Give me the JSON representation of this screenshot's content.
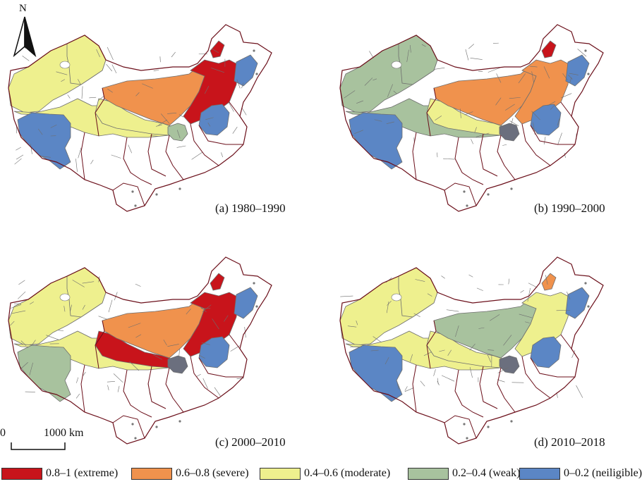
{
  "north_arrow": {
    "label": "N"
  },
  "scale_bar": {
    "start_label": "0",
    "end_label": "1000 km"
  },
  "panels": [
    {
      "caption": "(a) 1980–1990",
      "fills": {
        "dz": "#eef08e",
        "nw": "#eef08e",
        "ta": "#eef08e",
        "ti": "#5b86c5",
        "gs": "#eef08e",
        "im": "#f0924d",
        "ime": "#c8141b",
        "ne": "#c8141b",
        "nt": "#5b86c5",
        "np": "#a8c29e",
        "bj": "#5b86c5"
      }
    },
    {
      "caption": "(b) 1990–2000",
      "fills": {
        "dz": "#a8c29e",
        "nw": "#a8c29e",
        "ta": "#a8c29e",
        "ti": "#5b86c5",
        "gs": "#eef08e",
        "im": "#f0924d",
        "ime": "#f0924d",
        "ne": "#c8141b",
        "nt": "#5b86c5",
        "np": "#6b6f7e",
        "bj": "#5b86c5"
      }
    },
    {
      "caption": "(c) 2000–2010",
      "fills": {
        "dz": "#eef08e",
        "nw": "#eef08e",
        "ta": "#eef08e",
        "ti": "#a8c29e",
        "gs": "#c8141b",
        "im": "#f0924d",
        "ime": "#c8141b",
        "ne": "#c8141b",
        "nt": "#5b86c5",
        "np": "#6b6f7e",
        "bj": "#5b86c5"
      }
    },
    {
      "caption": "(d) 2010–2018",
      "fills": {
        "dz": "#eef08e",
        "nw": "#eef08e",
        "ta": "#eef08e",
        "ti": "#5b86c5",
        "gs": "#eef08e",
        "im": "#a8c29e",
        "ime": "#eef08e",
        "ne": "#f0924d",
        "nt": "#5b86c5",
        "np": "#6b6f7e",
        "bj": "#5b86c5"
      }
    }
  ],
  "legend": [
    {
      "label": "0.8–1 (extreme)",
      "color": "#c8141b"
    },
    {
      "label": "0.6–0.8  (severe)",
      "color": "#f0924d"
    },
    {
      "label": "0.4–0.6 (moderate)",
      "color": "#eef08e"
    },
    {
      "label": "0.2–0.4 (weak)",
      "color": "#a8c29e"
    },
    {
      "label": "0–0.2 (neiligible)",
      "color": "#5b86c5"
    }
  ],
  "colors": {
    "province_border": "#6b0f1a",
    "county_border": "#6e6e6e"
  }
}
